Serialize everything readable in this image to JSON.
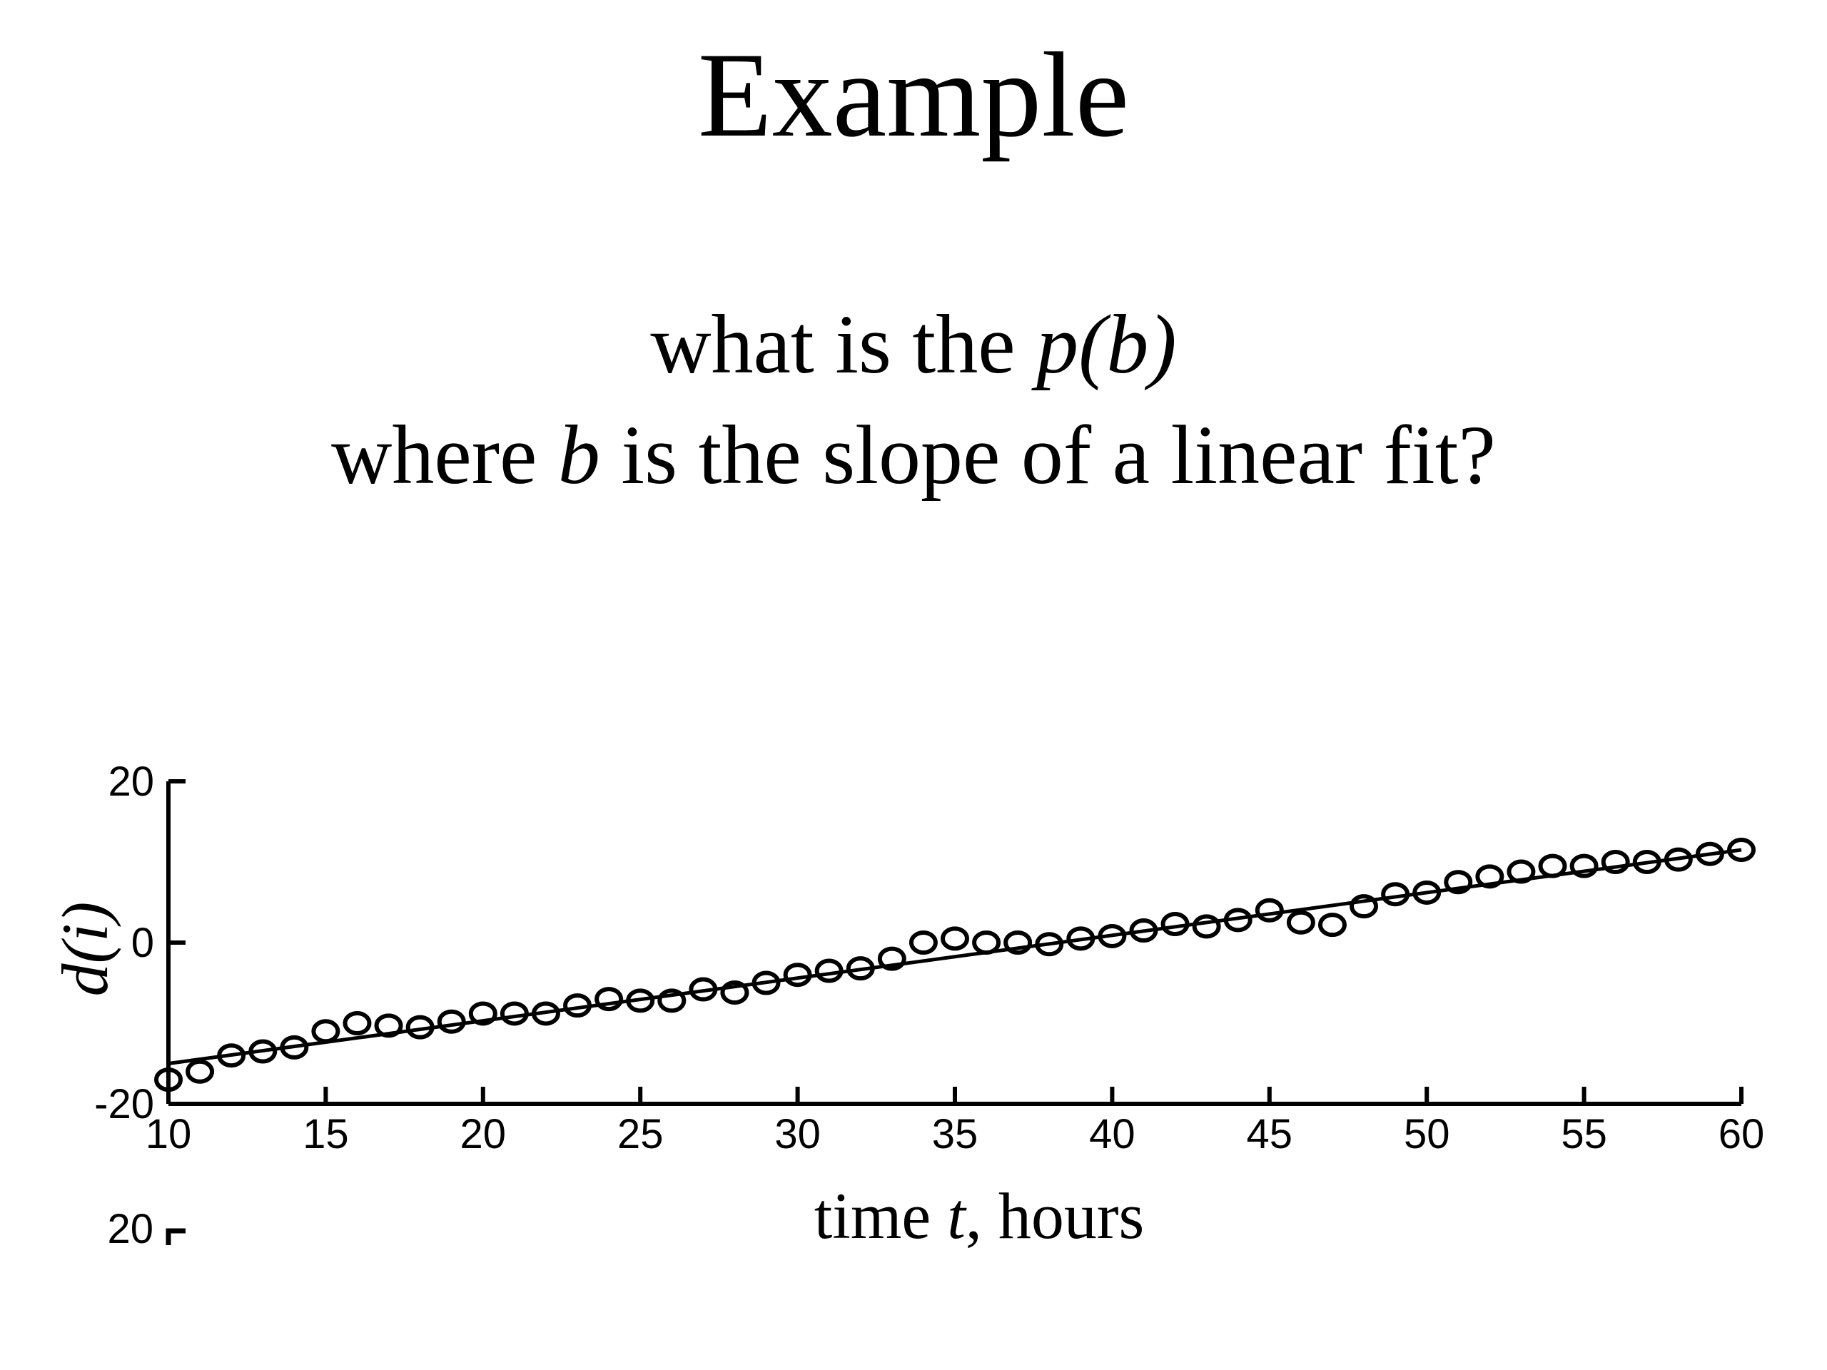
{
  "slide": {
    "title": "Example",
    "question_line1_prefix": "what is the ",
    "question_line1_italic": "p(b)",
    "question_line2_prefix": "where ",
    "question_line2_italic": "b",
    "question_line2_suffix": " is the slope of a linear fit?"
  },
  "chart_data": {
    "type": "scatter",
    "title": "",
    "xlabel_prefix": "time ",
    "xlabel_italic": "t",
    "xlabel_suffix": ", hours",
    "ylabel": "d(i)",
    "xlim": [
      10,
      60
    ],
    "ylim": [
      -20,
      20
    ],
    "x_ticks": [
      10,
      15,
      20,
      25,
      30,
      35,
      40,
      45,
      50,
      55,
      60
    ],
    "y_ticks": [
      -20,
      0,
      20
    ],
    "grid": false,
    "marker": "circle-open",
    "color": "#000000",
    "series": [
      {
        "x": [
          10,
          11,
          12,
          13,
          14,
          15,
          16,
          17,
          18,
          19,
          20,
          21,
          22,
          23,
          24,
          25,
          26,
          27,
          28,
          29,
          30,
          31,
          32,
          33,
          34,
          35,
          36,
          37,
          38,
          39,
          40,
          41,
          42,
          43,
          44,
          45,
          46,
          47,
          48,
          49,
          50,
          51,
          52,
          53,
          54,
          55,
          56,
          57,
          58,
          59,
          60
        ],
        "y": [
          -17,
          -16,
          -14,
          -13.5,
          -13,
          -11,
          -10,
          -10.3,
          -10.5,
          -9.8,
          -8.8,
          -8.8,
          -8.8,
          -7.8,
          -7,
          -7.2,
          -7.2,
          -5.8,
          -6.2,
          -5,
          -4,
          -3.5,
          -3.2,
          -2,
          0,
          0.5,
          0,
          0,
          -0.2,
          0.5,
          0.8,
          1.5,
          2.3,
          2,
          2.8,
          4,
          2.5,
          2.2,
          4.5,
          6,
          6.2,
          7.5,
          8.2,
          8.8,
          9.5,
          9.5,
          10,
          10,
          10.3,
          11,
          11.5
        ]
      },
      {
        "name": "",
        "type": "line",
        "x": [
          10,
          60
        ],
        "y": [
          -15,
          11.5
        ]
      }
    ],
    "extra_tick_label": "20"
  }
}
